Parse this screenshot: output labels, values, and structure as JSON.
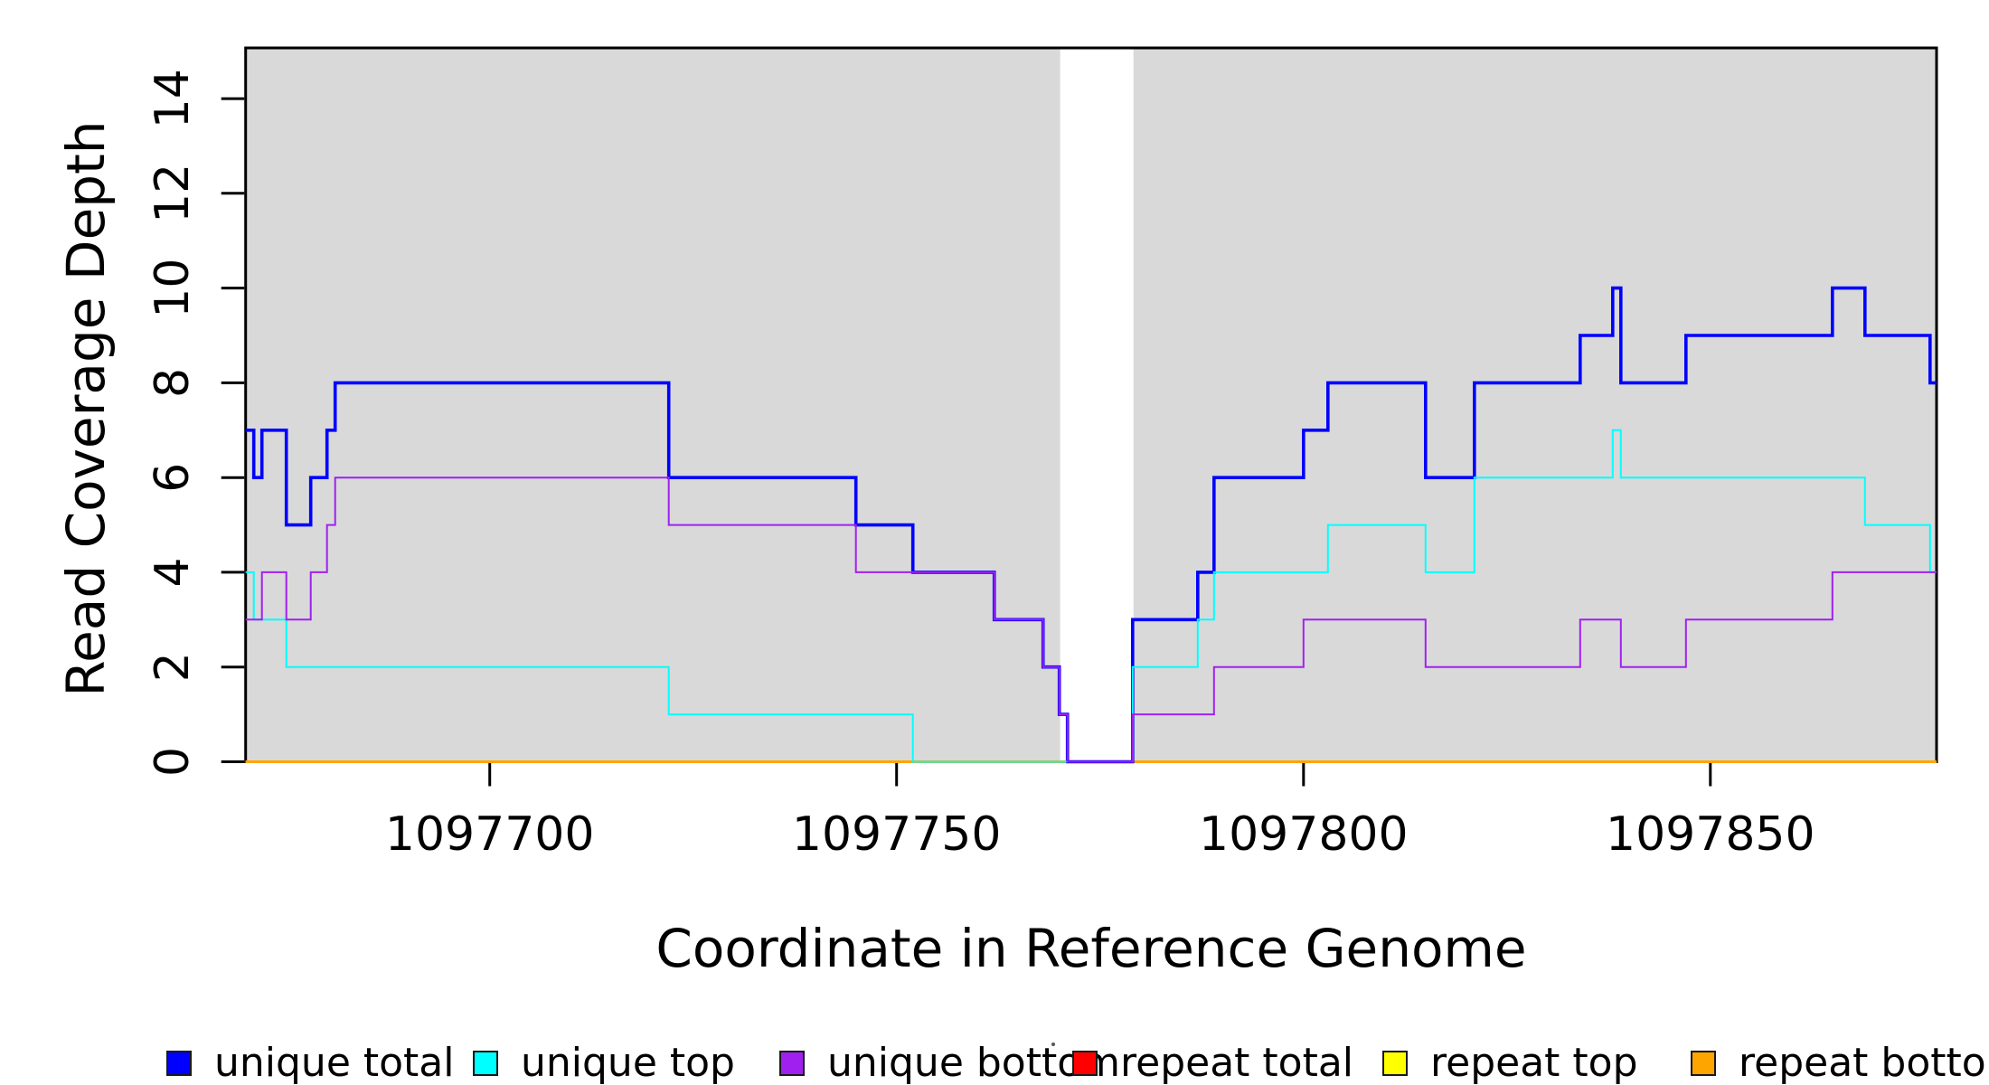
{
  "figure": {
    "background": "#ffffff",
    "axis_color": "#000000",
    "region_fill": "#d9d9d9"
  },
  "chart_data": {
    "type": "line",
    "subtype": "step",
    "title": "",
    "xlabel": "Coordinate in Reference Genome",
    "ylabel": "Read Coverage Depth",
    "xlim": [
      1097670,
      1097877.8
    ],
    "ylim": [
      0,
      15.07
    ],
    "x_ticks": [
      1097700,
      1097750,
      1097800,
      1097850
    ],
    "y_ticks": [
      0,
      2,
      4,
      6,
      8,
      10,
      12,
      14
    ],
    "grid": false,
    "legend_position": "bottom",
    "shaded_regions": [
      {
        "name": "covered-region-left",
        "x0": 1097670,
        "x1": 1097770.1
      },
      {
        "name": "covered-region-right",
        "x0": 1097779.1,
        "x1": 1097877.8
      }
    ],
    "series": [
      {
        "name": "repeat total",
        "color": "#ff0000",
        "width": 3,
        "points": [
          [
            1097670,
            0
          ],
          [
            1097877.8,
            0
          ]
        ]
      },
      {
        "name": "repeat top",
        "color": "#ffff00",
        "width": 3,
        "points": [
          [
            1097670,
            0
          ],
          [
            1097877.8,
            0
          ]
        ]
      },
      {
        "name": "repeat bottom",
        "color": "#ffa500",
        "width": 3,
        "points": [
          [
            1097670,
            0
          ],
          [
            1097877.8,
            0
          ]
        ]
      },
      {
        "name": "unique total",
        "color": "#0000ff",
        "width": 3.6,
        "points": [
          [
            1097670,
            7
          ],
          [
            1097671,
            6
          ],
          [
            1097672,
            7
          ],
          [
            1097675,
            5
          ],
          [
            1097678,
            6
          ],
          [
            1097680,
            7
          ],
          [
            1097681,
            8
          ],
          [
            1097722,
            6
          ],
          [
            1097745,
            5
          ],
          [
            1097752,
            4
          ],
          [
            1097762,
            3
          ],
          [
            1097768,
            2
          ],
          [
            1097770,
            1
          ],
          [
            1097771,
            0
          ],
          [
            1097779,
            3
          ],
          [
            1097787,
            4
          ],
          [
            1097789,
            6
          ],
          [
            1097800,
            7
          ],
          [
            1097803,
            8
          ],
          [
            1097815,
            6
          ],
          [
            1097821,
            8
          ],
          [
            1097834,
            9
          ],
          [
            1097838,
            10
          ],
          [
            1097839,
            8
          ],
          [
            1097847,
            9
          ],
          [
            1097865,
            10
          ],
          [
            1097869,
            9
          ],
          [
            1097877,
            8
          ],
          [
            1097877.8,
            8
          ]
        ]
      },
      {
        "name": "unique top",
        "color": "#00ffff",
        "width": 2,
        "points": [
          [
            1097670,
            4
          ],
          [
            1097671,
            3
          ],
          [
            1097675,
            2
          ],
          [
            1097722,
            1
          ],
          [
            1097752,
            0
          ],
          [
            1097779,
            2
          ],
          [
            1097787,
            3
          ],
          [
            1097789,
            4
          ],
          [
            1097803,
            5
          ],
          [
            1097815,
            4
          ],
          [
            1097821,
            6
          ],
          [
            1097838,
            7
          ],
          [
            1097839,
            6
          ],
          [
            1097869,
            5
          ],
          [
            1097877,
            4
          ],
          [
            1097877.8,
            4
          ]
        ]
      },
      {
        "name": "unique bottom",
        "color": "#a020f0",
        "width": 2,
        "points": [
          [
            1097670,
            3
          ],
          [
            1097672,
            4
          ],
          [
            1097675,
            3
          ],
          [
            1097678,
            4
          ],
          [
            1097680,
            5
          ],
          [
            1097681,
            6
          ],
          [
            1097722,
            5
          ],
          [
            1097745,
            4
          ],
          [
            1097762,
            3
          ],
          [
            1097768,
            2
          ],
          [
            1097770,
            1
          ],
          [
            1097771,
            0
          ],
          [
            1097779,
            1
          ],
          [
            1097789,
            2
          ],
          [
            1097800,
            3
          ],
          [
            1097815,
            2
          ],
          [
            1097834,
            3
          ],
          [
            1097839,
            2
          ],
          [
            1097847,
            3
          ],
          [
            1097865,
            4
          ],
          [
            1097877.8,
            4
          ]
        ]
      }
    ]
  },
  "legend": {
    "items": [
      {
        "label": "unique total",
        "color": "#0000ff"
      },
      {
        "label": "unique top",
        "color": "#00ffff"
      },
      {
        "label": "unique bottom",
        "color": "#a020f0"
      },
      {
        "label": "repeat total",
        "color": "#ff0000"
      },
      {
        "label": "repeat top",
        "color": "#ffff00"
      },
      {
        "label": "repeat bottom",
        "color": "#ffa500"
      }
    ]
  }
}
